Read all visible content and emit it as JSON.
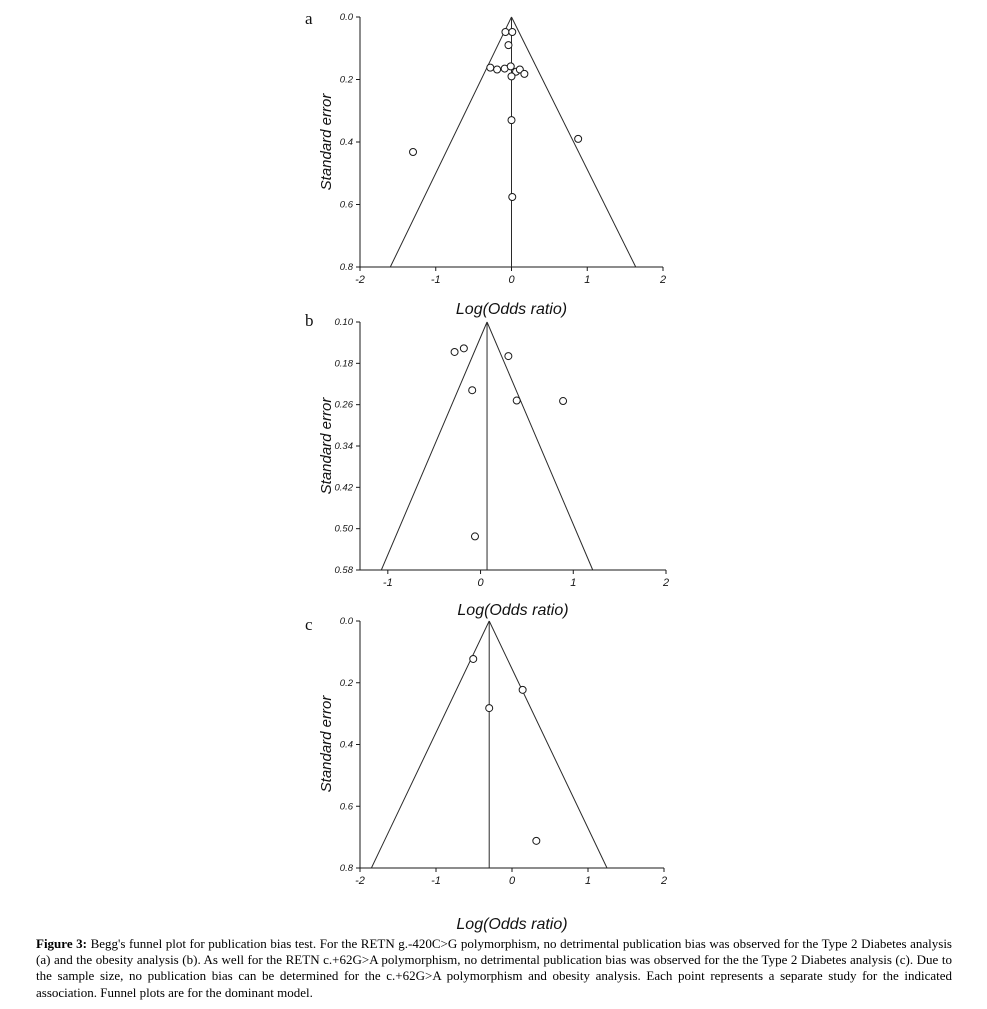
{
  "page": {
    "background": "#ffffff",
    "line_color": "#1a1a1a",
    "point_fill": "#ffffff"
  },
  "figure": {
    "caption_label": "Figure 3:",
    "caption_text": " Begg's funnel plot for publication bias test. For the RETN g.-420C>G polymorphism, no detrimental publication bias was observed for the Type 2 Diabetes analysis (a) and the obesity analysis (b). As well for the RETN c.+62G>A polymorphism, no detrimental publication bias was observed for the the Type 2 Diabetes analysis (c). Due to the sample size, no publication bias can be determined for the c.+62G>A polymorphism and obesity analysis. Each point represents a separate study for the indicated association. Funnel plots are for the dominant model."
  },
  "chart_data": [
    {
      "type": "scatter",
      "subtype": "funnel_plot",
      "panel_label": "a",
      "title": "",
      "xlabel": "Log(Odds ratio)",
      "ylabel": "Standard error",
      "xlim": [
        -2,
        2
      ],
      "ylim": [
        0.0,
        0.8
      ],
      "y_inverted": true,
      "grid": false,
      "legend": "none",
      "xticks": {
        "values": [
          -2,
          -1,
          0,
          1,
          2
        ],
        "labels": [
          "-2",
          "-1",
          "0",
          "1",
          "2"
        ]
      },
      "yticks": {
        "values": [
          0.0,
          0.2,
          0.4,
          0.6,
          0.8
        ],
        "labels": [
          "0.0",
          "0.2",
          "0.4",
          "0.6",
          "0.8"
        ]
      },
      "funnel": {
        "apex": [
          0.0,
          0.0
        ],
        "base_left": [
          -1.6,
          0.8
        ],
        "base_right": [
          1.64,
          0.8
        ],
        "center_line_x": 0.0
      },
      "points": [
        [
          -0.08,
          0.048
        ],
        [
          0.01,
          0.048
        ],
        [
          -0.04,
          0.09
        ],
        [
          -0.28,
          0.162
        ],
        [
          -0.19,
          0.168
        ],
        [
          -0.09,
          0.165
        ],
        [
          -0.01,
          0.158
        ],
        [
          0.06,
          0.175
        ],
        [
          0.0,
          0.19
        ],
        [
          0.11,
          0.168
        ],
        [
          0.17,
          0.182
        ],
        [
          0.0,
          0.33
        ],
        [
          0.88,
          0.39
        ],
        [
          -1.3,
          0.432
        ],
        [
          0.01,
          0.576
        ]
      ]
    },
    {
      "type": "scatter",
      "subtype": "funnel_plot",
      "panel_label": "b",
      "title": "",
      "xlabel": "Log(Odds ratio)",
      "ylabel": "Standard error",
      "xlim": [
        -1.3,
        2.0
      ],
      "ylim": [
        0.1,
        0.58
      ],
      "y_inverted": true,
      "grid": false,
      "legend": "none",
      "xticks": {
        "values": [
          -1,
          0,
          1,
          2
        ],
        "labels": [
          "-1",
          "0",
          "1",
          "2"
        ]
      },
      "yticks": {
        "values": [
          0.1,
          0.18,
          0.26,
          0.34,
          0.42,
          0.5,
          0.58
        ],
        "labels": [
          "0.10",
          "0.18",
          "0.26",
          "0.34",
          "0.42",
          "0.50",
          "0.58"
        ]
      },
      "funnel": {
        "apex": [
          0.07,
          0.1
        ],
        "base_left": [
          -1.07,
          0.58
        ],
        "base_right": [
          1.21,
          0.58
        ],
        "center_line_x": 0.07
      },
      "points": [
        [
          -0.28,
          0.158
        ],
        [
          -0.18,
          0.151
        ],
        [
          0.3,
          0.166
        ],
        [
          -0.09,
          0.232
        ],
        [
          0.39,
          0.252
        ],
        [
          0.89,
          0.253
        ],
        [
          -0.06,
          0.515
        ]
      ]
    },
    {
      "type": "scatter",
      "subtype": "funnel_plot",
      "panel_label": "c",
      "title": "",
      "xlabel": "Log(Odds ratio)",
      "ylabel": "Standard error",
      "xlim": [
        -2,
        2
      ],
      "ylim": [
        0.0,
        0.8
      ],
      "y_inverted": true,
      "grid": false,
      "legend": "none",
      "xticks": {
        "values": [
          -2,
          -1,
          0,
          1,
          2
        ],
        "labels": [
          "-2",
          "-1",
          "0",
          "1",
          "2"
        ]
      },
      "yticks": {
        "values": [
          0.0,
          0.2,
          0.4,
          0.6,
          0.8
        ],
        "labels": [
          "0.0",
          "0.2",
          "0.4",
          "0.6",
          "0.8"
        ]
      },
      "funnel": {
        "apex": [
          -0.3,
          0.0
        ],
        "base_left": [
          -1.85,
          0.8
        ],
        "base_right": [
          1.25,
          0.8
        ],
        "center_line_x": -0.3
      },
      "points": [
        [
          -0.51,
          0.123
        ],
        [
          0.14,
          0.223
        ],
        [
          -0.3,
          0.282
        ],
        [
          0.32,
          0.712
        ]
      ]
    }
  ]
}
